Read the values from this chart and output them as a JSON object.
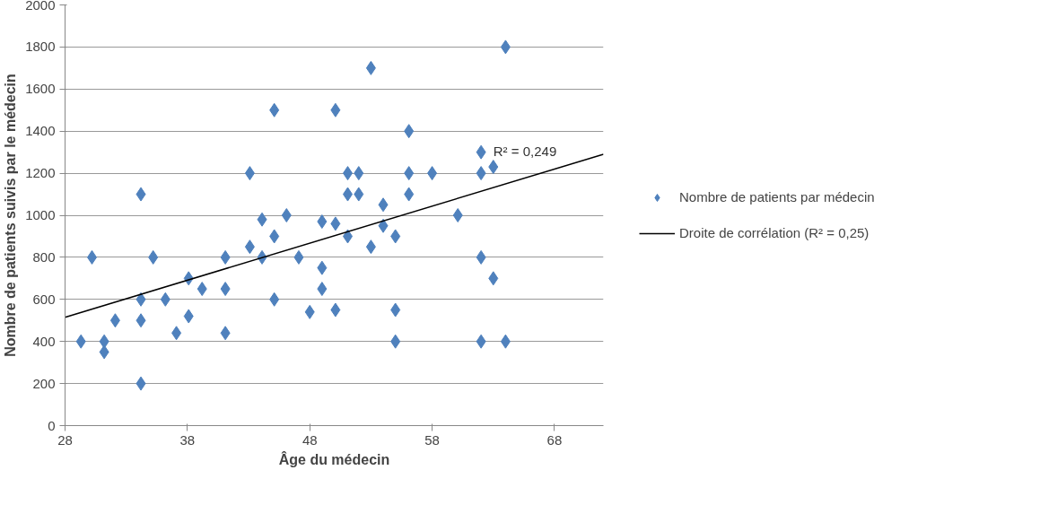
{
  "chart_data": {
    "type": "scatter",
    "xlabel": "Âge du médecin",
    "ylabel": "Nombre de patients suivis par le médecin",
    "xlim": [
      28,
      72
    ],
    "xticks": [
      28,
      38,
      48,
      58,
      68
    ],
    "ylim": [
      0,
      2000
    ],
    "yticks": [
      0,
      200,
      400,
      600,
      800,
      1000,
      1200,
      1400,
      1600,
      1800,
      2000
    ],
    "grid": "y",
    "legend": "right",
    "annotations": [
      {
        "text": "R² = 0,249",
        "x": 63,
        "y": 1270
      }
    ],
    "series": [
      {
        "name": "Nombre de patients par médecin",
        "color": "#4f81bd",
        "marker": "diamond",
        "x": [
          29.3,
          30.2,
          31.2,
          31.2,
          32.1,
          34.2,
          34.2,
          34.2,
          34.2,
          35.2,
          36.2,
          37.1,
          38.1,
          38.1,
          39.2,
          41.1,
          41.1,
          41.1,
          43.1,
          43.1,
          44.1,
          44.1,
          45.1,
          45.1,
          45.1,
          46.1,
          47.1,
          48.0,
          49.0,
          49.0,
          49.0,
          50.1,
          50.1,
          50.1,
          51.1,
          51.1,
          51.1,
          52.0,
          52.0,
          53.0,
          53.0,
          54.0,
          54.0,
          55.0,
          55.0,
          55.0,
          56.1,
          56.1,
          56.1,
          58.0,
          60.1,
          62.0,
          62.0,
          62.0,
          62.0,
          63.0,
          63.0,
          64.0,
          64.0
        ],
        "values": [
          400,
          800,
          400,
          350,
          500,
          1100,
          600,
          500,
          200,
          800,
          600,
          440,
          700,
          520,
          650,
          800,
          650,
          440,
          1200,
          850,
          980,
          800,
          1500,
          900,
          600,
          1000,
          800,
          540,
          970,
          750,
          650,
          1500,
          960,
          550,
          1200,
          1100,
          900,
          1200,
          1100,
          1700,
          850,
          1050,
          950,
          900,
          550,
          400,
          1400,
          1200,
          1100,
          1200,
          1000,
          1300,
          1200,
          800,
          400,
          700,
          1230,
          1800,
          400
        ]
      },
      {
        "name": "Droite de corrélation (R² = 0,25)",
        "color": "#000000",
        "type": "line",
        "line_style": "solid",
        "x": [
          28,
          72
        ],
        "values": [
          515,
          1290
        ]
      }
    ]
  }
}
